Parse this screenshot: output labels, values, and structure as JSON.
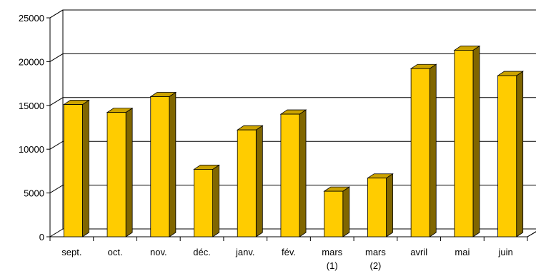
{
  "chart_data": {
    "type": "bar",
    "style": "3d-column",
    "categories": [
      [
        "sept."
      ],
      [
        "oct."
      ],
      [
        "nov."
      ],
      [
        "déc."
      ],
      [
        "janv."
      ],
      [
        "fév."
      ],
      [
        "mars",
        "(1)"
      ],
      [
        "mars",
        "(2)"
      ],
      [
        "avril"
      ],
      [
        "mai"
      ],
      [
        "juin"
      ]
    ],
    "values": [
      15100,
      14200,
      16000,
      7700,
      12200,
      14000,
      5200,
      6700,
      19200,
      21300,
      18400
    ],
    "ylim": [
      0,
      25000
    ],
    "yticks": [
      "0",
      "5000",
      "10000",
      "15000",
      "20000",
      "25000"
    ],
    "ytick_values": [
      0,
      5000,
      10000,
      15000,
      20000,
      25000
    ],
    "grid": true,
    "legend": "none",
    "colors": {
      "bar_front": "#FFCC00",
      "bar_top": "#CCA300",
      "bar_side": "#806600",
      "gridline": "#000000",
      "axis": "#000000",
      "wall": "#FFFFFF"
    }
  }
}
